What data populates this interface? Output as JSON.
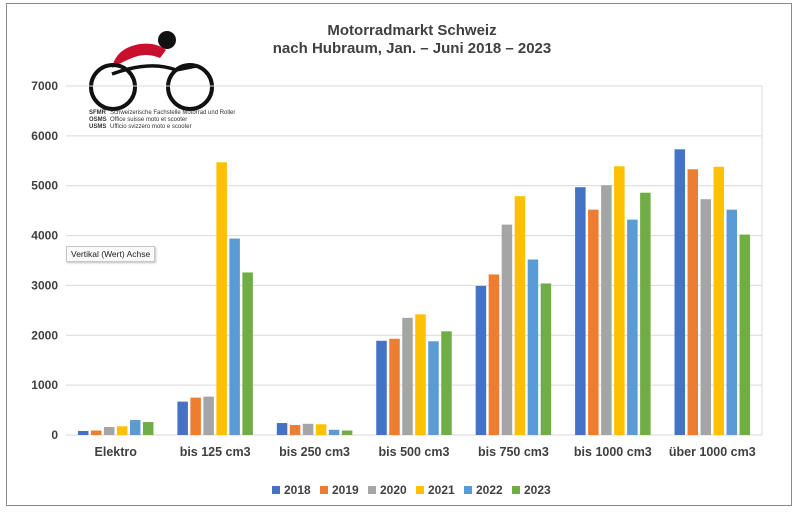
{
  "chart_data": {
    "type": "bar",
    "title": "Motorradmarkt Schweiz",
    "subtitle": "nach Hubraum, Jan. – Juni 2018 – 2023",
    "categories": [
      "Elektro",
      "bis 125 cm3",
      "bis 250 cm3",
      "bis 500 cm3",
      "bis 750 cm3",
      "bis 1000 cm3",
      "über 1000 cm3"
    ],
    "series": [
      {
        "name": "2018",
        "color": "#4472C4",
        "values": [
          80,
          670,
          240,
          1890,
          2990,
          4970,
          5730
        ]
      },
      {
        "name": "2019",
        "color": "#ED7D31",
        "values": [
          90,
          750,
          200,
          1930,
          3220,
          4520,
          5330
        ]
      },
      {
        "name": "2020",
        "color": "#A5A5A5",
        "values": [
          160,
          770,
          225,
          2350,
          4220,
          5010,
          4730
        ]
      },
      {
        "name": "2021",
        "color": "#FFC000",
        "values": [
          175,
          5470,
          215,
          2420,
          4790,
          5390,
          5380
        ]
      },
      {
        "name": "2022",
        "color": "#5B9BD5",
        "values": [
          300,
          3940,
          105,
          1880,
          3520,
          4320,
          4520
        ]
      },
      {
        "name": "2023",
        "color": "#70AD47",
        "values": [
          260,
          3260,
          90,
          2080,
          3040,
          4860,
          4020
        ]
      }
    ],
    "ylim": [
      0,
      7000
    ],
    "yticks": [
      0,
      1000,
      2000,
      3000,
      4000,
      5000,
      6000,
      7000
    ],
    "grid": true,
    "legend_position": "bottom"
  },
  "tooltip": {
    "text": "Vertikal (Wert) Achse"
  },
  "logo": {
    "line1_abbr": "SFMR",
    "line1_text": "Schweizerische Fachstelle Motorrad und Roller",
    "line2_abbr": "OSMS",
    "line2_text": "Office suisse moto et scooter",
    "line3_abbr": "USMS",
    "line3_text": "Ufficio svizzero moto e scooter",
    "accent_color": "#C8102E"
  }
}
